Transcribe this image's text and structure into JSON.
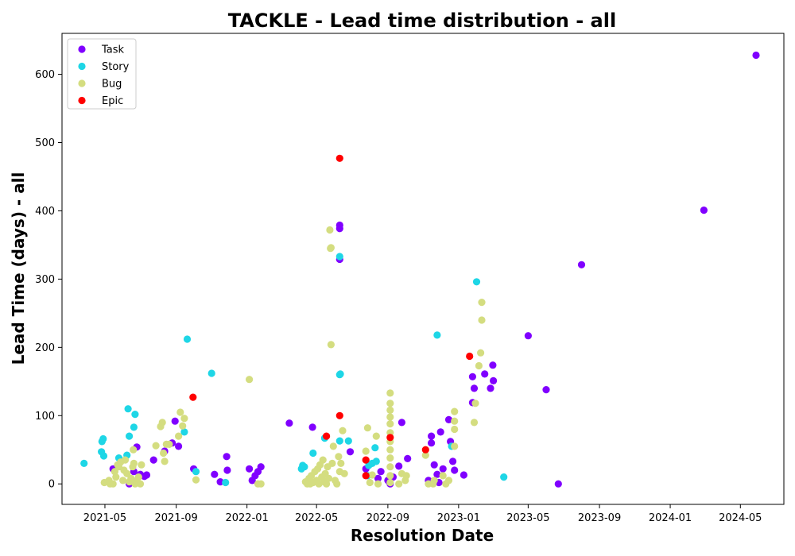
{
  "chart_data": {
    "type": "scatter",
    "title": "TACKLE - Lead time distribution - all",
    "xlabel": "Resolution Date",
    "ylabel": "Lead Time (days) - all",
    "x_type": "date",
    "xlim": [
      "2021-02-16",
      "2024-07-15"
    ],
    "ylim": [
      -30,
      660
    ],
    "x_ticks": [
      "2021-05-01",
      "2021-09-01",
      "2022-01-01",
      "2022-05-01",
      "2022-09-01",
      "2023-01-01",
      "2023-05-01",
      "2023-09-01",
      "2024-01-01",
      "2024-05-01"
    ],
    "x_tick_labels": [
      "2021-05",
      "2021-09",
      "2022-01",
      "2022-05",
      "2022-09",
      "2023-01",
      "2023-05",
      "2023-09",
      "2024-01",
      "2024-05"
    ],
    "y_ticks": [
      0,
      100,
      200,
      300,
      400,
      500,
      600
    ],
    "grid": false,
    "legend_position": "top-left",
    "series": [
      {
        "name": "Task",
        "color": "#8000ff",
        "points": [
          [
            "2021-05-15",
            22
          ],
          [
            "2021-06-12",
            0
          ],
          [
            "2021-06-20",
            18
          ],
          [
            "2021-06-25",
            54
          ],
          [
            "2021-07-01",
            14
          ],
          [
            "2021-07-08",
            11
          ],
          [
            "2021-07-12",
            13
          ],
          [
            "2021-07-24",
            35
          ],
          [
            "2021-08-12",
            48
          ],
          [
            "2021-08-25",
            60
          ],
          [
            "2021-08-30",
            92
          ],
          [
            "2021-09-05",
            55
          ],
          [
            "2021-10-01",
            22
          ],
          [
            "2021-11-06",
            14
          ],
          [
            "2021-11-16",
            3
          ],
          [
            "2021-11-27",
            40
          ],
          [
            "2021-11-28",
            20
          ],
          [
            "2022-01-05",
            22
          ],
          [
            "2022-01-10",
            5
          ],
          [
            "2022-01-15",
            12
          ],
          [
            "2022-01-20",
            18
          ],
          [
            "2022-01-25",
            25
          ],
          [
            "2022-03-15",
            89
          ],
          [
            "2022-04-24",
            83
          ],
          [
            "2022-06-10",
            379
          ],
          [
            "2022-06-10",
            374
          ],
          [
            "2022-06-10",
            329
          ],
          [
            "2022-06-28",
            47
          ],
          [
            "2022-07-25",
            22
          ],
          [
            "2022-08-15",
            8
          ],
          [
            "2022-08-20",
            18
          ],
          [
            "2022-09-01",
            5
          ],
          [
            "2022-09-05",
            0
          ],
          [
            "2022-09-10",
            10
          ],
          [
            "2022-09-20",
            26
          ],
          [
            "2022-09-25",
            90
          ],
          [
            "2022-10-05",
            37
          ],
          [
            "2022-11-10",
            5
          ],
          [
            "2022-11-15",
            70
          ],
          [
            "2022-11-15",
            60
          ],
          [
            "2022-11-20",
            28
          ],
          [
            "2022-11-25",
            14
          ],
          [
            "2022-11-28",
            2
          ],
          [
            "2022-12-01",
            76
          ],
          [
            "2022-12-05",
            22
          ],
          [
            "2022-12-15",
            94
          ],
          [
            "2022-12-18",
            62
          ],
          [
            "2022-12-22",
            33
          ],
          [
            "2022-12-25",
            20
          ],
          [
            "2023-01-10",
            13
          ],
          [
            "2023-01-25",
            157
          ],
          [
            "2023-01-25",
            119
          ],
          [
            "2023-01-28",
            140
          ],
          [
            "2023-02-15",
            161
          ],
          [
            "2023-02-25",
            140
          ],
          [
            "2023-03-01",
            174
          ],
          [
            "2023-03-02",
            151
          ],
          [
            "2023-05-01",
            217
          ],
          [
            "2023-06-01",
            138
          ],
          [
            "2023-06-22",
            0
          ],
          [
            "2023-08-01",
            321
          ],
          [
            "2024-02-28",
            401
          ],
          [
            "2024-05-28",
            628
          ]
        ]
      },
      {
        "name": "Story",
        "color": "#1ed6e6",
        "points": [
          [
            "2021-03-26",
            30
          ],
          [
            "2021-04-25",
            47
          ],
          [
            "2021-04-26",
            62
          ],
          [
            "2021-04-28",
            66
          ],
          [
            "2021-04-29",
            41
          ],
          [
            "2021-05-25",
            38
          ],
          [
            "2021-06-08",
            42
          ],
          [
            "2021-06-10",
            110
          ],
          [
            "2021-06-12",
            70
          ],
          [
            "2021-06-20",
            83
          ],
          [
            "2021-06-22",
            102
          ],
          [
            "2021-09-15",
            76
          ],
          [
            "2021-09-20",
            212
          ],
          [
            "2021-10-05",
            18
          ],
          [
            "2021-11-01",
            162
          ],
          [
            "2021-11-25",
            2
          ],
          [
            "2022-04-05",
            22
          ],
          [
            "2022-04-07",
            27
          ],
          [
            "2022-04-10",
            25
          ],
          [
            "2022-04-25",
            45
          ],
          [
            "2022-05-15",
            67
          ],
          [
            "2022-06-10",
            333
          ],
          [
            "2022-06-10",
            160
          ],
          [
            "2022-06-11",
            161
          ],
          [
            "2022-06-10",
            63
          ],
          [
            "2022-06-25",
            63
          ],
          [
            "2022-07-28",
            12
          ],
          [
            "2022-07-30",
            27
          ],
          [
            "2022-08-05",
            30
          ],
          [
            "2022-08-10",
            53
          ],
          [
            "2022-08-12",
            33
          ],
          [
            "2022-11-25",
            218
          ],
          [
            "2022-12-20",
            55
          ],
          [
            "2023-02-01",
            296
          ],
          [
            "2023-03-20",
            10
          ]
        ]
      },
      {
        "name": "Bug",
        "color": "#d4dd80",
        "points": [
          [
            "2021-04-30",
            2
          ],
          [
            "2021-05-08",
            5
          ],
          [
            "2021-05-10",
            0
          ],
          [
            "2021-05-15",
            0
          ],
          [
            "2021-05-18",
            18
          ],
          [
            "2021-05-20",
            10
          ],
          [
            "2021-05-23",
            28
          ],
          [
            "2021-05-25",
            25
          ],
          [
            "2021-05-28",
            32
          ],
          [
            "2021-06-01",
            5
          ],
          [
            "2021-06-03",
            20
          ],
          [
            "2021-06-05",
            35
          ],
          [
            "2021-06-08",
            15
          ],
          [
            "2021-06-12",
            3
          ],
          [
            "2021-06-15",
            8
          ],
          [
            "2021-06-18",
            25
          ],
          [
            "2021-06-19",
            50
          ],
          [
            "2021-06-20",
            30
          ],
          [
            "2021-06-22",
            0
          ],
          [
            "2021-06-25",
            5
          ],
          [
            "2021-06-28",
            10
          ],
          [
            "2021-07-01",
            0
          ],
          [
            "2021-07-03",
            28
          ],
          [
            "2021-07-28",
            56
          ],
          [
            "2021-08-05",
            84
          ],
          [
            "2021-08-08",
            90
          ],
          [
            "2021-08-10",
            45
          ],
          [
            "2021-08-12",
            33
          ],
          [
            "2021-08-15",
            58
          ],
          [
            "2021-08-20",
            58
          ],
          [
            "2021-09-05",
            70
          ],
          [
            "2021-09-08",
            105
          ],
          [
            "2021-09-12",
            85
          ],
          [
            "2021-09-15",
            96
          ],
          [
            "2021-10-05",
            6
          ],
          [
            "2022-01-05",
            153
          ],
          [
            "2022-01-20",
            0
          ],
          [
            "2022-01-25",
            0
          ],
          [
            "2022-04-12",
            3
          ],
          [
            "2022-04-15",
            0
          ],
          [
            "2022-04-18",
            8
          ],
          [
            "2022-04-20",
            0
          ],
          [
            "2022-04-22",
            12
          ],
          [
            "2022-04-25",
            2
          ],
          [
            "2022-04-28",
            18
          ],
          [
            "2022-05-01",
            5
          ],
          [
            "2022-05-03",
            22
          ],
          [
            "2022-05-05",
            0
          ],
          [
            "2022-05-07",
            28
          ],
          [
            "2022-05-10",
            10
          ],
          [
            "2022-05-12",
            35
          ],
          [
            "2022-05-14",
            3
          ],
          [
            "2022-05-16",
            15
          ],
          [
            "2022-05-18",
            0
          ],
          [
            "2022-05-20",
            25
          ],
          [
            "2022-05-22",
            8
          ],
          [
            "2022-05-24",
            372
          ],
          [
            "2022-05-25",
            345
          ],
          [
            "2022-05-26",
            346
          ],
          [
            "2022-05-26",
            204
          ],
          [
            "2022-05-28",
            30
          ],
          [
            "2022-05-30",
            55
          ],
          [
            "2022-06-02",
            5
          ],
          [
            "2022-06-05",
            0
          ],
          [
            "2022-06-08",
            40
          ],
          [
            "2022-06-10",
            18
          ],
          [
            "2022-06-12",
            30
          ],
          [
            "2022-06-15",
            78
          ],
          [
            "2022-06-18",
            15
          ],
          [
            "2022-07-25",
            48
          ],
          [
            "2022-07-28",
            82
          ],
          [
            "2022-08-01",
            2
          ],
          [
            "2022-08-05",
            13
          ],
          [
            "2022-08-12",
            70
          ],
          [
            "2022-08-15",
            0
          ],
          [
            "2022-09-05",
            2
          ],
          [
            "2022-09-05",
            12
          ],
          [
            "2022-09-05",
            25
          ],
          [
            "2022-09-05",
            38
          ],
          [
            "2022-09-05",
            50
          ],
          [
            "2022-09-05",
            62
          ],
          [
            "2022-09-05",
            75
          ],
          [
            "2022-09-05",
            88
          ],
          [
            "2022-09-05",
            98
          ],
          [
            "2022-09-05",
            108
          ],
          [
            "2022-09-05",
            118
          ],
          [
            "2022-09-05",
            133
          ],
          [
            "2022-09-20",
            0
          ],
          [
            "2022-09-25",
            15
          ],
          [
            "2022-10-01",
            5
          ],
          [
            "2022-10-03",
            12
          ],
          [
            "2022-11-05",
            42
          ],
          [
            "2022-11-10",
            0
          ],
          [
            "2022-11-18",
            0
          ],
          [
            "2022-11-20",
            5
          ],
          [
            "2022-12-05",
            12
          ],
          [
            "2022-12-10",
            0
          ],
          [
            "2022-12-15",
            5
          ],
          [
            "2022-12-25",
            55
          ],
          [
            "2022-12-25",
            80
          ],
          [
            "2022-12-25",
            92
          ],
          [
            "2022-12-25",
            106
          ],
          [
            "2023-01-28",
            90
          ],
          [
            "2023-01-30",
            118
          ],
          [
            "2023-02-05",
            173
          ],
          [
            "2023-02-08",
            192
          ],
          [
            "2023-02-10",
            240
          ],
          [
            "2023-02-10",
            266
          ]
        ]
      },
      {
        "name": "Epic",
        "color": "#ff0000",
        "points": [
          [
            "2021-09-30",
            127
          ],
          [
            "2022-05-18",
            70
          ],
          [
            "2022-06-10",
            477
          ],
          [
            "2022-06-10",
            100
          ],
          [
            "2022-07-25",
            35
          ],
          [
            "2022-07-25",
            12
          ],
          [
            "2022-09-05",
            68
          ],
          [
            "2022-11-05",
            50
          ],
          [
            "2023-01-20",
            187
          ]
        ]
      }
    ]
  }
}
